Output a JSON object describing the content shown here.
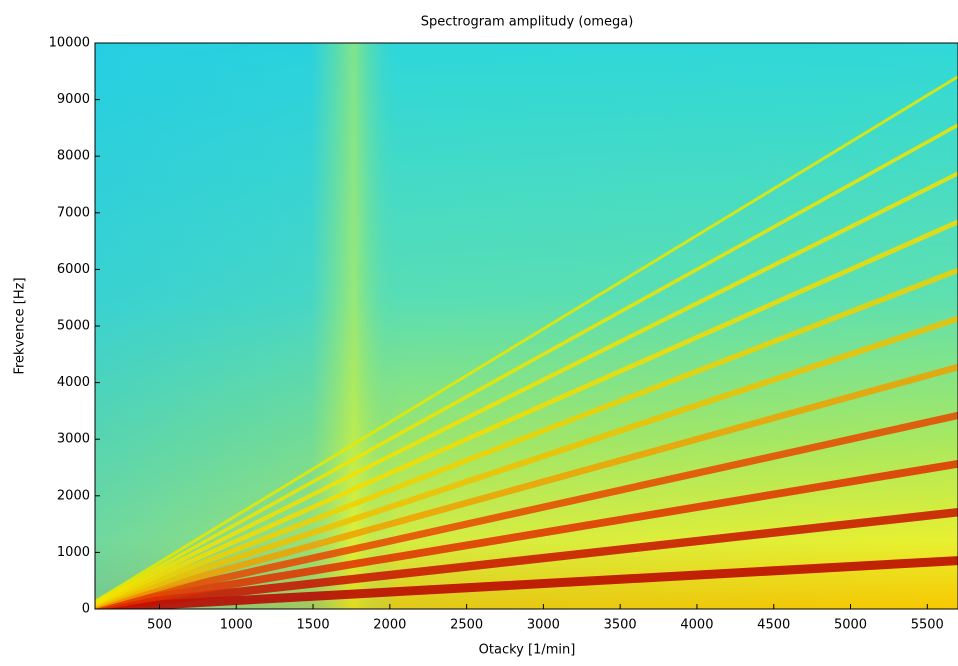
{
  "chart_data": {
    "type": "spectrogram",
    "title": "Spectrogram amplitudy (omega)",
    "xlabel": "Otacky [1/min]",
    "ylabel": "Frekvence [Hz]",
    "xlim": [
      80,
      5700
    ],
    "ylim": [
      0,
      10000
    ],
    "xticks": [
      500,
      1000,
      1500,
      2000,
      2500,
      3000,
      3500,
      4000,
      4500,
      5000,
      5500
    ],
    "yticks": [
      0,
      1000,
      2000,
      3000,
      4000,
      5000,
      6000,
      7000,
      8000,
      9000,
      10000
    ],
    "x": [
      80,
      5700
    ],
    "series": [
      {
        "color": "#b80000",
        "values": [
          12,
          855
        ]
      },
      {
        "color": "#c81000",
        "values": [
          24,
          1710
        ]
      },
      {
        "color": "#e03000",
        "values": [
          36,
          2565
        ]
      },
      {
        "color": "#e84800",
        "values": [
          48,
          3420
        ]
      },
      {
        "color": "#f0a000",
        "values": [
          60,
          4275
        ]
      },
      {
        "color": "#f0c000",
        "values": [
          72,
          5130
        ]
      },
      {
        "color": "#f0d000",
        "values": [
          84,
          5985
        ]
      },
      {
        "color": "#f4dc00",
        "values": [
          96,
          6840
        ]
      },
      {
        "color": "#f4e000",
        "values": [
          108,
          7695
        ]
      },
      {
        "color": "#f0e400",
        "values": [
          120,
          8550
        ]
      },
      {
        "color": "#e8e800",
        "values": [
          132,
          9405
        ]
      }
    ]
  }
}
